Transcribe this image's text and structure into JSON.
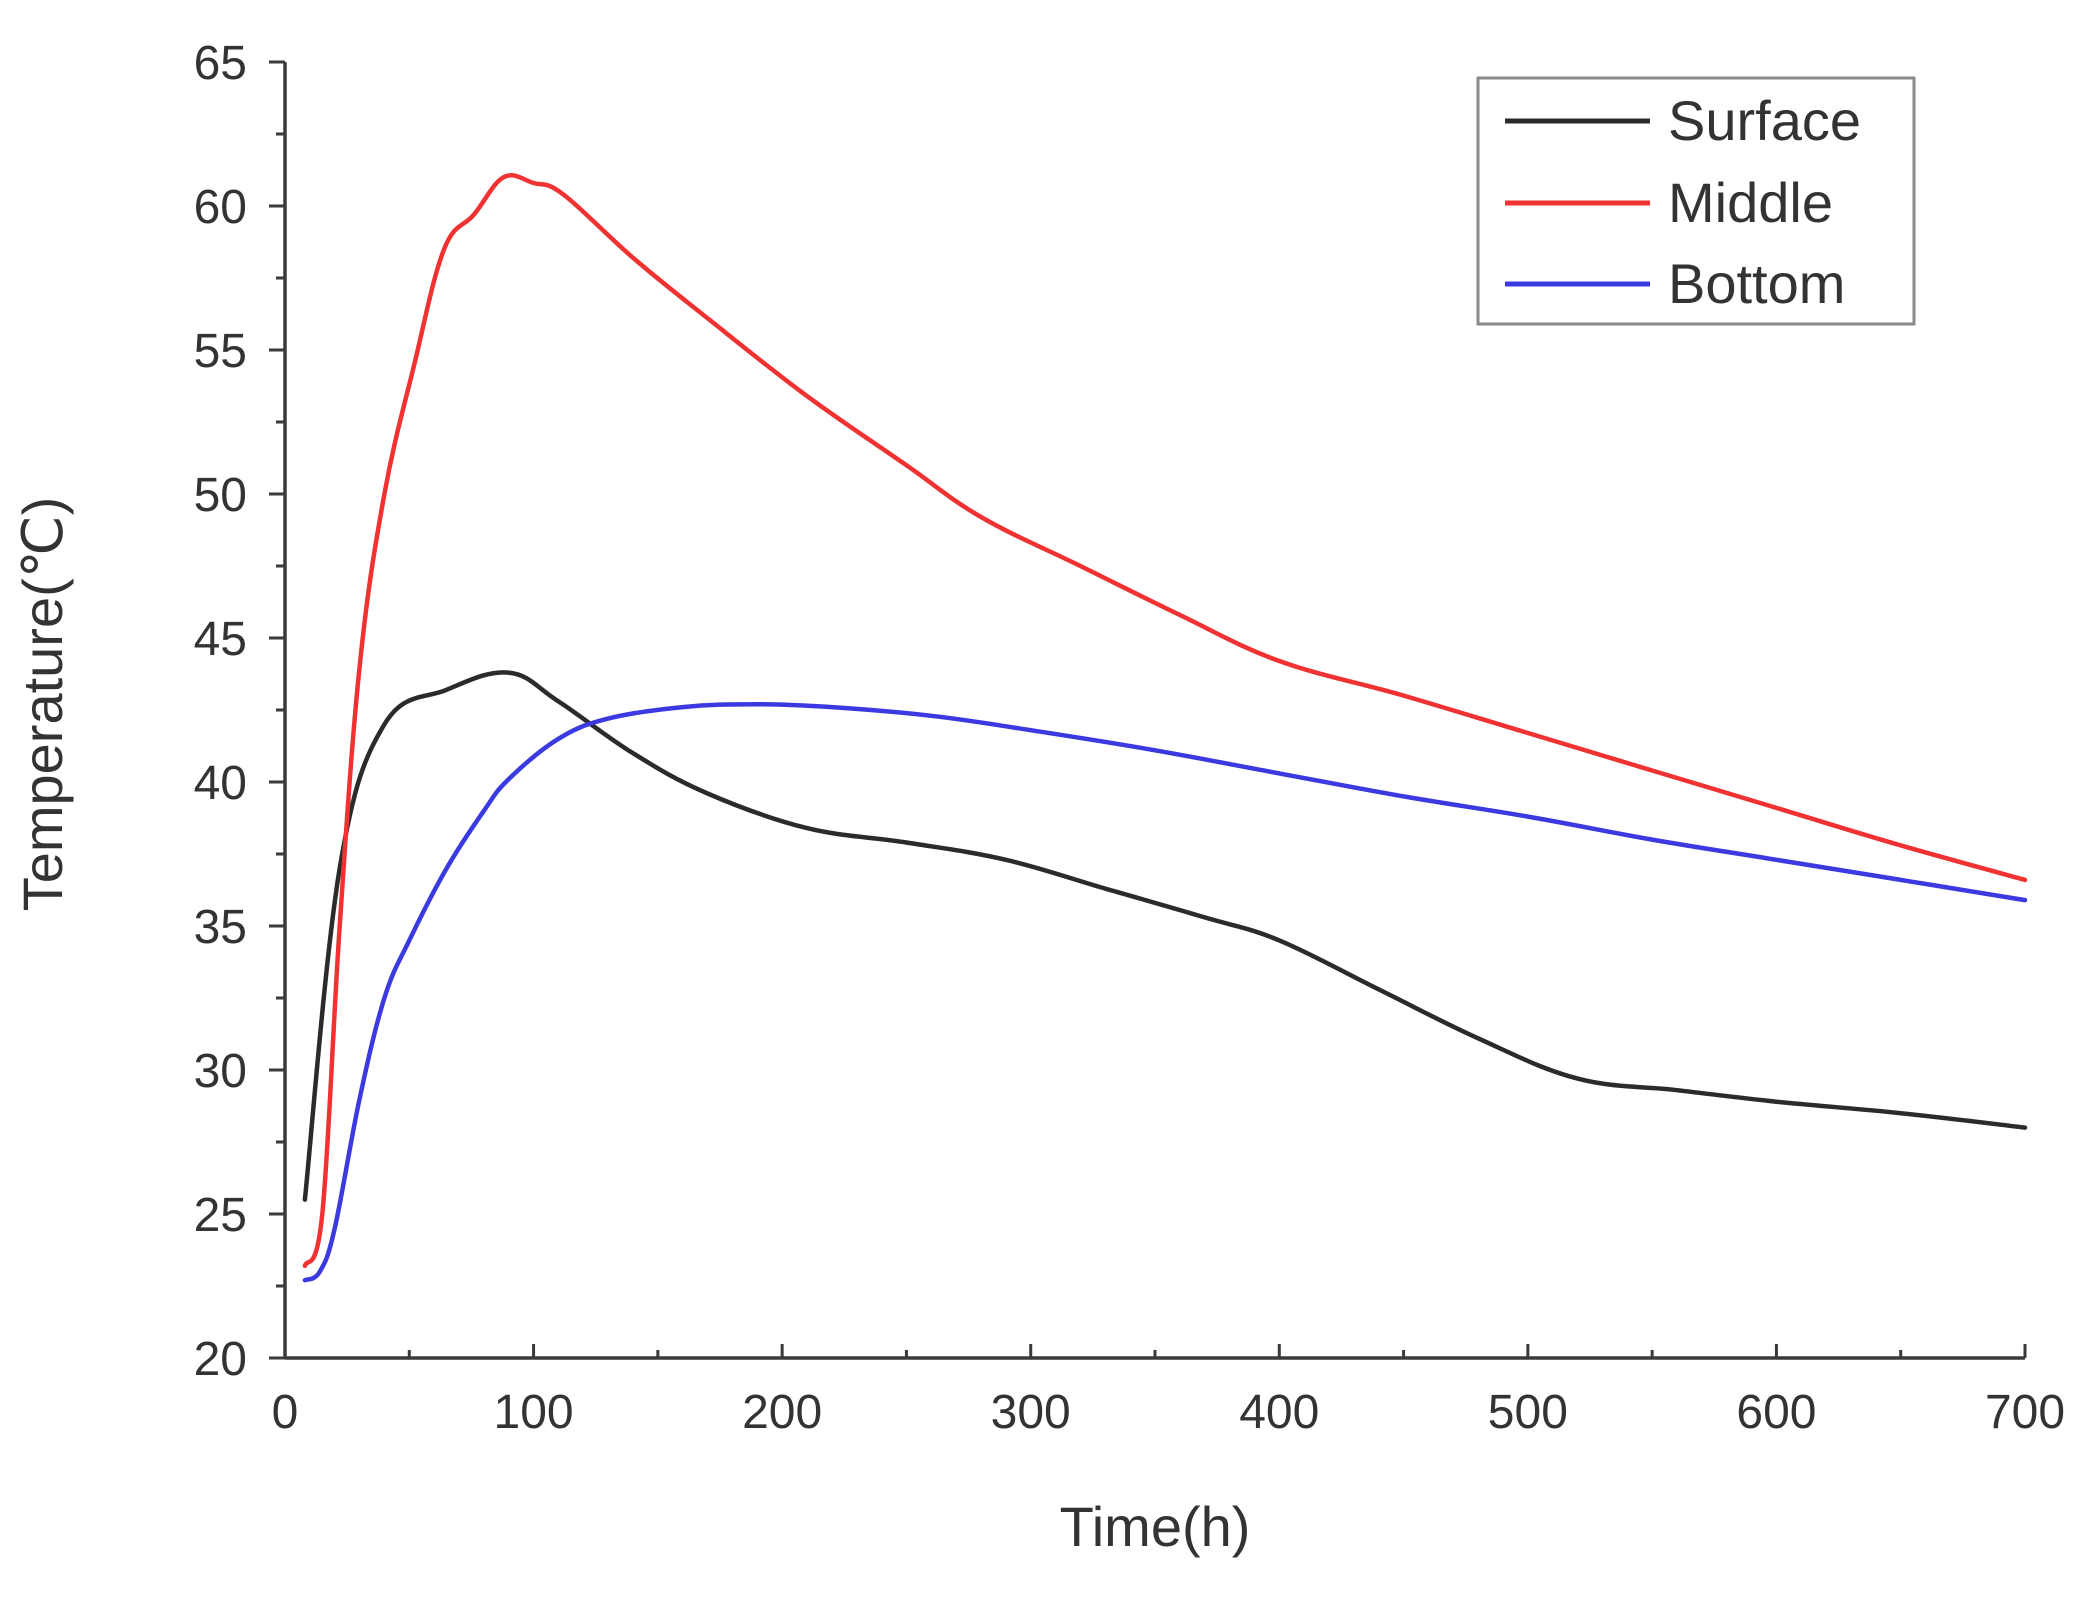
{
  "chart_data": {
    "type": "line",
    "title": "",
    "xlabel": "Time(h)",
    "ylabel": "Temperature(℃)",
    "xlim": [
      0,
      700
    ],
    "ylim": [
      20,
      65
    ],
    "xticks": [
      0,
      100,
      200,
      300,
      400,
      500,
      600,
      700
    ],
    "yticks": [
      20,
      25,
      30,
      35,
      40,
      45,
      50,
      55,
      60,
      65
    ],
    "legend_position": "top-right",
    "series": [
      {
        "name": "Surface",
        "color": "#2b2b2b",
        "x": [
          8,
          22,
          40,
          65,
          90,
          110,
          140,
          170,
          210,
          250,
          290,
          330,
          370,
          400,
          440,
          480,
          520,
          560,
          600,
          650,
          700
        ],
        "y": [
          25.5,
          37,
          42,
          43.2,
          43.8,
          42.8,
          41,
          39.6,
          38.4,
          37.9,
          37.3,
          36.3,
          35.3,
          34.5,
          32.8,
          31.1,
          29.7,
          29.3,
          28.9,
          28.5,
          28
        ]
      },
      {
        "name": "Middle",
        "color": "#f03232",
        "x": [
          8,
          15,
          22,
          30,
          40,
          52,
          64,
          76,
          88,
          100,
          112,
          140,
          170,
          210,
          250,
          280,
          320,
          360,
          400,
          450,
          500,
          550,
          600,
          650,
          700
        ],
        "y": [
          23.2,
          25,
          35,
          44,
          50,
          54.5,
          58.5,
          59.7,
          61,
          60.8,
          60.4,
          58.2,
          56.1,
          53.4,
          51,
          49.2,
          47.5,
          45.8,
          44.2,
          43,
          41.7,
          40.4,
          39.1,
          37.8,
          36.6
        ]
      },
      {
        "name": "Bottom",
        "color": "#3a3ae0",
        "x": [
          8,
          14,
          20,
          30,
          40,
          50,
          65,
          80,
          90,
          110,
          130,
          160,
          190,
          220,
          260,
          300,
          350,
          400,
          450,
          500,
          550,
          600,
          650,
          700
        ],
        "y": [
          22.7,
          23,
          24.5,
          29,
          32.5,
          34.5,
          37,
          39,
          40.1,
          41.5,
          42.2,
          42.6,
          42.7,
          42.6,
          42.3,
          41.8,
          41.1,
          40.3,
          39.5,
          38.8,
          38,
          37.3,
          36.6,
          35.9
        ]
      }
    ]
  }
}
